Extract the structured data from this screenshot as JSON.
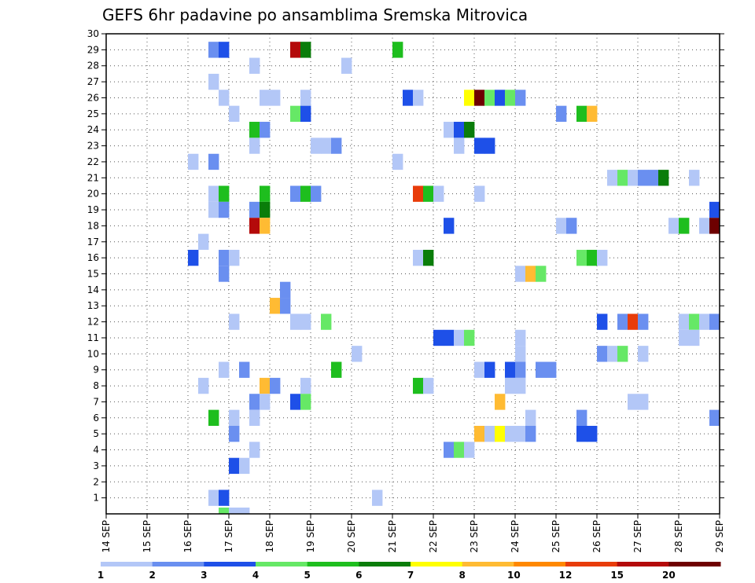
{
  "chart_data": {
    "type": "heatmap",
    "title": "GEFS 6hr padavine po ansamblima Sremska Mitrovica",
    "x_ticks": [
      "14 SEP",
      "15 SEP",
      "16 SEP",
      "17 SEP",
      "18 SEP",
      "19 SEP",
      "20 SEP",
      "21 SEP",
      "22 SEP",
      "23 SEP",
      "24 SEP",
      "25 SEP",
      "26 SEP",
      "27 SEP",
      "28 SEP",
      "29 SEP"
    ],
    "y_ticks": [
      "1",
      "2",
      "3",
      "4",
      "5",
      "6",
      "7",
      "8",
      "9",
      "10",
      "11",
      "12",
      "13",
      "14",
      "15",
      "16",
      "17",
      "18",
      "19",
      "20",
      "21",
      "22",
      "23",
      "24",
      "25",
      "26",
      "27",
      "28",
      "29",
      "30"
    ],
    "x_range": [
      "14 SEP 00",
      "29 SEP 00"
    ],
    "y_range": [
      0,
      30
    ],
    "steps_per_day": 4,
    "grid": true,
    "legend": "bottom",
    "levels": [
      "1",
      "2",
      "3",
      "4",
      "5",
      "6",
      "7",
      "8",
      "10",
      "12",
      "15",
      "20"
    ],
    "colors": [
      "#b3c7f7",
      "#6a8ff0",
      "#1e50e8",
      "#66e866",
      "#1ebe1e",
      "#0a7d0a",
      "#ffff00",
      "#ffbb33",
      "#ff8800",
      "#e83c0a",
      "#b40a0a",
      "#6e0000"
    ],
    "cells": [
      [
        2.5,
        29,
        2
      ],
      [
        2.75,
        29,
        3
      ],
      [
        4.5,
        29,
        11
      ],
      [
        4.75,
        29,
        6
      ],
      [
        7,
        29,
        5
      ],
      [
        3.5,
        28,
        1
      ],
      [
        5.75,
        28,
        1
      ],
      [
        2.5,
        27,
        1
      ],
      [
        2.75,
        26,
        1
      ],
      [
        3.75,
        26,
        1
      ],
      [
        4,
        26,
        1
      ],
      [
        4.75,
        26,
        1
      ],
      [
        7.25,
        26,
        3
      ],
      [
        7.5,
        26,
        1
      ],
      [
        8.75,
        26,
        7
      ],
      [
        9,
        26,
        12
      ],
      [
        9.25,
        26,
        4
      ],
      [
        9.5,
        26,
        3
      ],
      [
        9.75,
        26,
        4
      ],
      [
        10,
        26,
        2
      ],
      [
        3,
        25,
        1
      ],
      [
        4.5,
        25,
        4
      ],
      [
        4.75,
        25,
        3
      ],
      [
        11,
        25,
        2
      ],
      [
        11.5,
        25,
        5
      ],
      [
        11.75,
        25,
        8
      ],
      [
        3.5,
        24,
        5
      ],
      [
        3.75,
        24,
        2
      ],
      [
        8.25,
        24,
        1
      ],
      [
        8.5,
        24,
        3
      ],
      [
        8.75,
        24,
        6
      ],
      [
        3.5,
        23,
        1
      ],
      [
        5,
        23,
        1
      ],
      [
        5.25,
        23,
        1
      ],
      [
        5.5,
        23,
        2
      ],
      [
        8.5,
        23,
        1
      ],
      [
        9,
        23,
        3
      ],
      [
        9.25,
        23,
        3
      ],
      [
        2,
        22,
        1
      ],
      [
        2.5,
        22,
        2
      ],
      [
        7,
        22,
        1
      ],
      [
        12.25,
        21,
        1
      ],
      [
        12.5,
        21,
        4
      ],
      [
        12.75,
        21,
        1
      ],
      [
        13,
        21,
        2
      ],
      [
        13.25,
        21,
        2
      ],
      [
        13.5,
        21,
        6
      ],
      [
        14.25,
        21,
        1
      ],
      [
        2.5,
        20,
        1
      ],
      [
        2.75,
        20,
        5
      ],
      [
        3.75,
        20,
        5
      ],
      [
        4.5,
        20,
        2
      ],
      [
        4.75,
        20,
        5
      ],
      [
        5,
        20,
        2
      ],
      [
        7.5,
        20,
        10
      ],
      [
        7.75,
        20,
        5
      ],
      [
        8,
        20,
        1
      ],
      [
        9,
        20,
        1
      ],
      [
        2.5,
        19,
        1
      ],
      [
        2.75,
        19,
        2
      ],
      [
        3.5,
        19,
        2
      ],
      [
        3.75,
        19,
        6
      ],
      [
        14.75,
        19,
        3
      ],
      [
        3.5,
        18,
        11
      ],
      [
        3.75,
        18,
        8
      ],
      [
        8.25,
        18,
        3
      ],
      [
        11,
        18,
        1
      ],
      [
        11.25,
        18,
        2
      ],
      [
        13.75,
        18,
        1
      ],
      [
        14,
        18,
        5
      ],
      [
        14.5,
        18,
        1
      ],
      [
        14.75,
        18,
        12
      ],
      [
        2.25,
        17,
        1
      ],
      [
        2,
        16,
        3
      ],
      [
        2.75,
        16,
        2
      ],
      [
        3,
        16,
        1
      ],
      [
        7.5,
        16,
        1
      ],
      [
        7.75,
        16,
        6
      ],
      [
        11.5,
        16,
        4
      ],
      [
        11.75,
        16,
        5
      ],
      [
        12,
        16,
        1
      ],
      [
        2.75,
        15,
        2
      ],
      [
        10,
        15,
        1
      ],
      [
        10.25,
        15,
        8
      ],
      [
        10.5,
        15,
        4
      ],
      [
        4.25,
        14,
        2
      ],
      [
        4,
        13,
        8
      ],
      [
        4.25,
        13,
        2
      ],
      [
        3,
        12,
        1
      ],
      [
        4.5,
        12,
        1
      ],
      [
        4.75,
        12,
        1
      ],
      [
        5.25,
        12,
        4
      ],
      [
        12,
        12,
        3
      ],
      [
        12.5,
        12,
        2
      ],
      [
        12.75,
        12,
        10
      ],
      [
        13,
        12,
        2
      ],
      [
        14,
        12,
        1
      ],
      [
        14.25,
        12,
        4
      ],
      [
        14.5,
        12,
        1
      ],
      [
        14.75,
        12,
        2
      ],
      [
        8,
        11,
        3
      ],
      [
        8.25,
        11,
        3
      ],
      [
        8.5,
        11,
        1
      ],
      [
        8.75,
        11,
        4
      ],
      [
        10,
        11,
        1
      ],
      [
        14,
        11,
        1
      ],
      [
        14.25,
        11,
        1
      ],
      [
        6,
        10,
        1
      ],
      [
        10,
        10,
        1
      ],
      [
        12,
        10,
        2
      ],
      [
        12.25,
        10,
        1
      ],
      [
        12.5,
        10,
        4
      ],
      [
        13,
        10,
        1
      ],
      [
        2.75,
        9,
        1
      ],
      [
        3.25,
        9,
        2
      ],
      [
        5.5,
        9,
        5
      ],
      [
        9,
        9,
        1
      ],
      [
        9.25,
        9,
        3
      ],
      [
        9.75,
        9,
        3
      ],
      [
        10,
        9,
        2
      ],
      [
        10.5,
        9,
        2
      ],
      [
        10.75,
        9,
        2
      ],
      [
        2.25,
        8,
        1
      ],
      [
        3.75,
        8,
        8
      ],
      [
        4,
        8,
        2
      ],
      [
        4.75,
        8,
        1
      ],
      [
        7.5,
        8,
        5
      ],
      [
        7.75,
        8,
        1
      ],
      [
        9.75,
        8,
        1
      ],
      [
        10,
        8,
        1
      ],
      [
        3.5,
        7,
        2
      ],
      [
        3.75,
        7,
        1
      ],
      [
        4.5,
        7,
        3
      ],
      [
        4.75,
        7,
        4
      ],
      [
        9.5,
        7,
        8
      ],
      [
        12.75,
        7,
        1
      ],
      [
        13,
        7,
        1
      ],
      [
        2.5,
        6,
        5
      ],
      [
        3,
        6,
        1
      ],
      [
        3.5,
        6,
        1
      ],
      [
        10.25,
        6,
        1
      ],
      [
        11.5,
        6,
        2
      ],
      [
        14.75,
        6,
        2
      ],
      [
        3,
        5,
        2
      ],
      [
        9,
        5,
        8
      ],
      [
        9.25,
        5,
        1
      ],
      [
        9.5,
        5,
        7
      ],
      [
        9.75,
        5,
        1
      ],
      [
        10,
        5,
        1
      ],
      [
        10.25,
        5,
        2
      ],
      [
        11.5,
        5,
        3
      ],
      [
        11.75,
        5,
        3
      ],
      [
        3.5,
        4,
        1
      ],
      [
        8.25,
        4,
        2
      ],
      [
        8.5,
        4,
        4
      ],
      [
        8.75,
        4,
        1
      ],
      [
        3,
        3,
        3
      ],
      [
        3.25,
        3,
        1
      ],
      [
        2.5,
        1,
        1
      ],
      [
        2.75,
        1,
        3
      ],
      [
        6.5,
        1,
        1
      ],
      [
        2.75,
        0,
        4
      ],
      [
        3,
        0,
        1
      ],
      [
        3.25,
        0,
        1
      ]
    ]
  }
}
